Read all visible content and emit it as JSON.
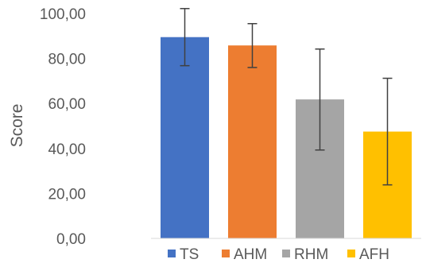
{
  "chart_data": {
    "type": "bar",
    "categories": [
      "TS",
      "AHM",
      "RHM",
      "AFH"
    ],
    "values": [
      89.5,
      85.8,
      61.8,
      47.5
    ],
    "error_low": [
      76.8,
      76.0,
      39.3,
      23.8
    ],
    "error_high": [
      102.2,
      95.5,
      84.2,
      71.2
    ],
    "colors": [
      "#4472C4",
      "#ED7D31",
      "#A5A5A5",
      "#FFC000"
    ],
    "ylabel": "Score",
    "xlabel": "",
    "title": "",
    "ylim": [
      0,
      100
    ],
    "yticks": [
      0,
      20,
      40,
      60,
      80,
      100
    ],
    "ytick_labels": [
      "0,00",
      "20,00",
      "40,00",
      "60,00",
      "80,00",
      "100,00"
    ],
    "grid": false,
    "legend": {
      "position": "bottom",
      "entries": [
        "TS",
        "AHM",
        "RHM",
        "AFH"
      ]
    }
  }
}
